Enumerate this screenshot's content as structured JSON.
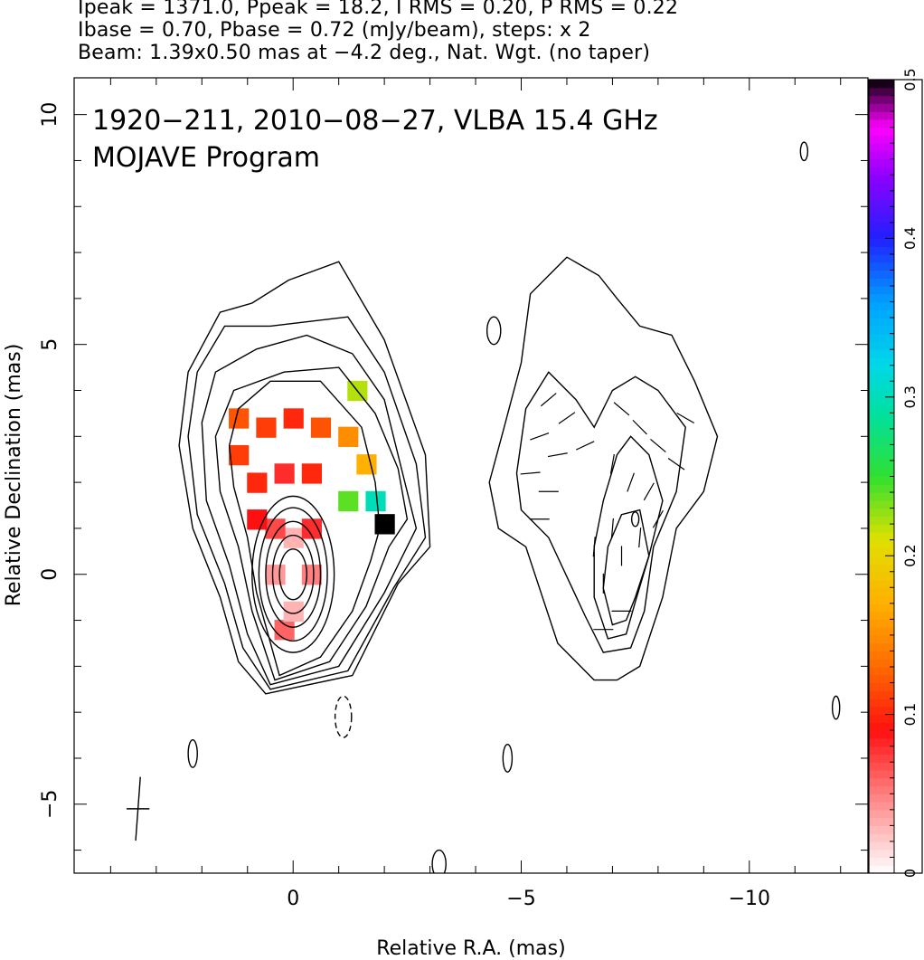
{
  "header": {
    "line1": "Ipeak = 1371.0, Ppeak = 18.2, I RMS = 0.20, P RMS = 0.22",
    "line2": "Ibase = 0.70, Pbase = 0.72 (mJy/beam), steps: x 2",
    "line3": "Beam: 1.39x0.50 mas at −4.2 deg., Nat. Wgt. (no taper)"
  },
  "chart_data": {
    "type": "heatmap",
    "title": "1920−211, 2010−08−27, VLBA 15.4 GHz",
    "subtitle": "MOJAVE Program",
    "xlabel": "Relative R.A. (mas)",
    "ylabel": "Relative Declination (mas)",
    "xlim": [
      4.8,
      -12.6
    ],
    "ylim": [
      -6.5,
      10.8
    ],
    "x_ticks": [
      {
        "value": 0,
        "label": "0"
      },
      {
        "value": -5,
        "label": "−5"
      },
      {
        "value": -10,
        "label": "−10"
      }
    ],
    "y_ticks": [
      {
        "value": -5,
        "label": "−5"
      },
      {
        "value": 0,
        "label": "0"
      },
      {
        "value": 5,
        "label": "5"
      },
      {
        "value": 10,
        "label": "10"
      }
    ],
    "colorbar": {
      "range": [
        0,
        0.5
      ],
      "ticks": [
        {
          "value": 0,
          "label": "0"
        },
        {
          "value": 0.1,
          "label": "0.1"
        },
        {
          "value": 0.2,
          "label": "0.2"
        },
        {
          "value": 0.3,
          "label": "0.3"
        },
        {
          "value": 0.4,
          "label": "0.4"
        },
        {
          "value": 0.5,
          "label": "0.5"
        }
      ],
      "stops": [
        {
          "v": 0.0,
          "color": "#ffffff"
        },
        {
          "v": 0.05,
          "color": "#ff8080"
        },
        {
          "v": 0.09,
          "color": "#ff1010"
        },
        {
          "v": 0.13,
          "color": "#ff6a00"
        },
        {
          "v": 0.17,
          "color": "#ffb000"
        },
        {
          "v": 0.21,
          "color": "#e0e000"
        },
        {
          "v": 0.25,
          "color": "#30e030"
        },
        {
          "v": 0.29,
          "color": "#00e0a0"
        },
        {
          "v": 0.32,
          "color": "#00d8e8"
        },
        {
          "v": 0.36,
          "color": "#00a0ff"
        },
        {
          "v": 0.4,
          "color": "#2020ff"
        },
        {
          "v": 0.44,
          "color": "#9000ff"
        },
        {
          "v": 0.47,
          "color": "#ff00ff"
        },
        {
          "v": 0.49,
          "color": "#600060"
        },
        {
          "v": 0.5,
          "color": "#000000"
        }
      ]
    },
    "left_panel": {
      "core": [
        0.0,
        0.0
      ],
      "core_contours": [
        {
          "rx": 0.3,
          "ry": 0.55
        },
        {
          "rx": 0.45,
          "ry": 0.85
        },
        {
          "rx": 0.6,
          "ry": 1.15
        },
        {
          "rx": 0.75,
          "ry": 1.45
        },
        {
          "rx": 0.9,
          "ry": 1.7
        }
      ],
      "extended_contours": [
        [
          [
            0.3,
            -2.2
          ],
          [
            -0.6,
            -1.8
          ],
          [
            -1.3,
            -0.8
          ],
          [
            -1.7,
            0.3
          ],
          [
            -1.9,
            1.0
          ],
          [
            -1.8,
            2.0
          ],
          [
            -1.5,
            3.2
          ],
          [
            -0.6,
            4.2
          ],
          [
            0.5,
            4.2
          ],
          [
            1.2,
            3.6
          ],
          [
            1.4,
            2.8
          ],
          [
            1.3,
            1.9
          ],
          [
            1.0,
            0.8
          ],
          [
            0.8,
            -0.4
          ]
        ],
        [
          [
            0.4,
            -2.3
          ],
          [
            -0.8,
            -1.9
          ],
          [
            -1.6,
            -0.7
          ],
          [
            -2.1,
            0.6
          ],
          [
            -2.5,
            1.2
          ],
          [
            -2.3,
            2.3
          ],
          [
            -1.8,
            3.5
          ],
          [
            -1.0,
            4.5
          ],
          [
            0.2,
            4.4
          ],
          [
            1.3,
            4.0
          ],
          [
            1.7,
            3.0
          ],
          [
            1.6,
            1.8
          ],
          [
            1.2,
            0.6
          ],
          [
            0.9,
            -0.8
          ]
        ],
        [
          [
            0.5,
            -2.4
          ],
          [
            -1.0,
            -2.0
          ],
          [
            -2.0,
            -0.4
          ],
          [
            -2.7,
            1.0
          ],
          [
            -2.4,
            2.2
          ],
          [
            -2.0,
            3.8
          ],
          [
            -1.3,
            4.8
          ],
          [
            -0.3,
            5.2
          ],
          [
            0.8,
            4.9
          ],
          [
            1.7,
            4.4
          ],
          [
            2.0,
            3.3
          ],
          [
            1.9,
            1.6
          ],
          [
            1.4,
            0.2
          ],
          [
            1.0,
            -1.3
          ]
        ],
        [
          [
            0.5,
            -2.5
          ],
          [
            -1.2,
            -2.1
          ],
          [
            -2.2,
            -0.3
          ],
          [
            -2.9,
            0.8
          ],
          [
            -2.7,
            2.4
          ],
          [
            -2.0,
            4.4
          ],
          [
            -1.2,
            5.6
          ],
          [
            0.5,
            5.4
          ],
          [
            1.5,
            5.4
          ],
          [
            2.1,
            4.4
          ],
          [
            2.3,
            3.0
          ],
          [
            2.1,
            1.3
          ],
          [
            1.5,
            -0.2
          ],
          [
            1.1,
            -1.6
          ]
        ],
        [
          [
            0.6,
            -2.6
          ],
          [
            -1.3,
            -2.2
          ],
          [
            -2.3,
            -0.2
          ],
          [
            -3.0,
            0.6
          ],
          [
            -2.9,
            2.6
          ],
          [
            -2.0,
            5.1
          ],
          [
            -1.0,
            6.8
          ],
          [
            0.1,
            6.4
          ],
          [
            0.9,
            5.9
          ],
          [
            1.6,
            5.7
          ],
          [
            2.3,
            4.4
          ],
          [
            2.5,
            2.8
          ],
          [
            2.2,
            1.0
          ],
          [
            1.6,
            -0.5
          ],
          [
            1.2,
            -1.9
          ]
        ]
      ],
      "pol_cells": [
        {
          "x": 0.2,
          "y": -1.2,
          "v": 0.06
        },
        {
          "x": 0.0,
          "y": -0.8,
          "v": 0.03
        },
        {
          "x": 0.0,
          "y": 0.0,
          "v": 0.0
        },
        {
          "x": 0.4,
          "y": 0.0,
          "v": 0.04
        },
        {
          "x": -0.4,
          "y": 0.0,
          "v": 0.05
        },
        {
          "x": 0.0,
          "y": 0.8,
          "v": 0.03
        },
        {
          "x": 0.4,
          "y": 1.0,
          "v": 0.07
        },
        {
          "x": -0.4,
          "y": 1.0,
          "v": 0.08
        },
        {
          "x": 0.8,
          "y": 1.2,
          "v": 0.09
        },
        {
          "x": 0.8,
          "y": 2.0,
          "v": 0.1
        },
        {
          "x": 0.2,
          "y": 2.2,
          "v": 0.08
        },
        {
          "x": -0.4,
          "y": 2.2,
          "v": 0.1
        },
        {
          "x": 1.2,
          "y": 2.6,
          "v": 0.11
        },
        {
          "x": 1.2,
          "y": 3.4,
          "v": 0.12
        },
        {
          "x": 0.6,
          "y": 3.2,
          "v": 0.11
        },
        {
          "x": 0.0,
          "y": 3.4,
          "v": 0.1
        },
        {
          "x": -0.6,
          "y": 3.2,
          "v": 0.12
        },
        {
          "x": -1.2,
          "y": 3.0,
          "v": 0.15
        },
        {
          "x": -1.6,
          "y": 2.4,
          "v": 0.17
        },
        {
          "x": -1.8,
          "y": 1.6,
          "v": 0.3
        },
        {
          "x": -1.2,
          "y": 1.6,
          "v": 0.24
        },
        {
          "x": -1.4,
          "y": 4.0,
          "v": 0.22
        },
        {
          "x": -2.0,
          "y": 1.1,
          "v": 0.5
        }
      ]
    },
    "right_panel": {
      "core": [
        -7.5,
        1.2
      ],
      "contours": [
        [
          [
            -6.6,
            -2.3
          ],
          [
            -5.8,
            -1.5
          ],
          [
            -5.1,
            0.6
          ],
          [
            -4.5,
            1.0
          ],
          [
            -4.3,
            2.0
          ],
          [
            -4.6,
            3.1
          ],
          [
            -5.0,
            4.6
          ],
          [
            -5.2,
            6.1
          ],
          [
            -6.0,
            6.9
          ],
          [
            -6.7,
            6.5
          ],
          [
            -7.1,
            6.0
          ],
          [
            -7.6,
            5.4
          ],
          [
            -8.3,
            5.2
          ],
          [
            -8.8,
            4.2
          ],
          [
            -9.3,
            3.0
          ],
          [
            -9.0,
            1.8
          ],
          [
            -8.4,
            1.0
          ],
          [
            -8.1,
            -0.5
          ],
          [
            -7.6,
            -2.0
          ],
          [
            -7.1,
            -2.3
          ]
        ],
        [
          [
            -6.8,
            -1.7
          ],
          [
            -6.4,
            -0.9
          ],
          [
            -5.6,
            0.8
          ],
          [
            -5.0,
            1.4
          ],
          [
            -4.9,
            2.2
          ],
          [
            -5.1,
            3.6
          ],
          [
            -5.6,
            4.4
          ],
          [
            -6.2,
            3.8
          ],
          [
            -6.6,
            3.2
          ],
          [
            -7.0,
            4.0
          ],
          [
            -7.5,
            4.3
          ],
          [
            -8.0,
            4.0
          ],
          [
            -8.6,
            3.2
          ],
          [
            -8.4,
            1.8
          ],
          [
            -7.9,
            0.6
          ],
          [
            -7.7,
            -0.8
          ],
          [
            -7.4,
            -1.6
          ]
        ],
        [
          [
            -6.9,
            -1.4
          ],
          [
            -6.6,
            -0.5
          ],
          [
            -6.6,
            0.6
          ],
          [
            -6.8,
            1.6
          ],
          [
            -7.1,
            2.6
          ],
          [
            -7.4,
            3.0
          ],
          [
            -7.8,
            2.6
          ],
          [
            -8.1,
            1.6
          ],
          [
            -7.8,
            0.4
          ],
          [
            -7.5,
            -0.6
          ],
          [
            -7.3,
            -1.3
          ]
        ],
        [
          [
            -7.0,
            -1.1
          ],
          [
            -6.8,
            -0.3
          ],
          [
            -6.9,
            0.6
          ],
          [
            -7.2,
            1.3
          ],
          [
            -7.6,
            1.4
          ],
          [
            -7.8,
            0.4
          ],
          [
            -7.5,
            -0.5
          ],
          [
            -7.3,
            -1.0
          ]
        ]
      ],
      "vectors": [
        {
          "x": -5.6,
          "y": 3.8,
          "a": 40
        },
        {
          "x": -6.0,
          "y": 3.4,
          "a": 35
        },
        {
          "x": -5.4,
          "y": 3.0,
          "a": 20
        },
        {
          "x": -5.8,
          "y": 2.6,
          "a": 10
        },
        {
          "x": -5.2,
          "y": 2.2,
          "a": 5
        },
        {
          "x": -5.6,
          "y": 1.8,
          "a": 0
        },
        {
          "x": -5.4,
          "y": 1.2,
          "a": 0
        },
        {
          "x": -6.4,
          "y": 2.8,
          "a": 25
        },
        {
          "x": -7.2,
          "y": 3.6,
          "a": -40
        },
        {
          "x": -7.6,
          "y": 3.2,
          "a": -45
        },
        {
          "x": -8.0,
          "y": 2.8,
          "a": -40
        },
        {
          "x": -8.4,
          "y": 2.4,
          "a": -35
        },
        {
          "x": -7.0,
          "y": 2.4,
          "a": 80
        },
        {
          "x": -7.4,
          "y": 2.0,
          "a": 70
        },
        {
          "x": -7.8,
          "y": 1.8,
          "a": 60
        },
        {
          "x": -7.0,
          "y": 1.0,
          "a": 85
        },
        {
          "x": -7.2,
          "y": 0.4,
          "a": 90
        },
        {
          "x": -6.8,
          "y": -0.2,
          "a": 90
        },
        {
          "x": -7.2,
          "y": -0.8,
          "a": 0
        },
        {
          "x": -6.8,
          "y": -1.2,
          "a": 0
        },
        {
          "x": -7.6,
          "y": 0.8,
          "a": 85
        },
        {
          "x": -8.0,
          "y": 1.2,
          "a": 60
        },
        {
          "x": -6.6,
          "y": 0.6,
          "a": 85
        },
        {
          "x": -8.6,
          "y": 3.4,
          "a": -30
        }
      ]
    },
    "islands": [
      {
        "x": -4.4,
        "y": 5.3,
        "rx": 0.15,
        "ry": 0.3,
        "dashed": false
      },
      {
        "x": -4.7,
        "y": -4.0,
        "rx": 0.1,
        "ry": 0.3,
        "dashed": false
      },
      {
        "x": 2.2,
        "y": -3.9,
        "rx": 0.1,
        "ry": 0.3,
        "dashed": false
      },
      {
        "x": -1.1,
        "y": -3.1,
        "rx": 0.18,
        "ry": 0.45,
        "dashed": true
      },
      {
        "x": -3.2,
        "y": -6.3,
        "rx": 0.15,
        "ry": 0.3,
        "dashed": false
      },
      {
        "x": -11.2,
        "y": 9.2,
        "rx": 0.08,
        "ry": 0.2,
        "dashed": false
      },
      {
        "x": -11.9,
        "y": -2.9,
        "rx": 0.08,
        "ry": 0.25,
        "dashed": false
      }
    ],
    "beam": {
      "x": 3.4,
      "y": -5.1,
      "major": 1.39,
      "minor": 0.5,
      "pa": -4.2
    }
  }
}
